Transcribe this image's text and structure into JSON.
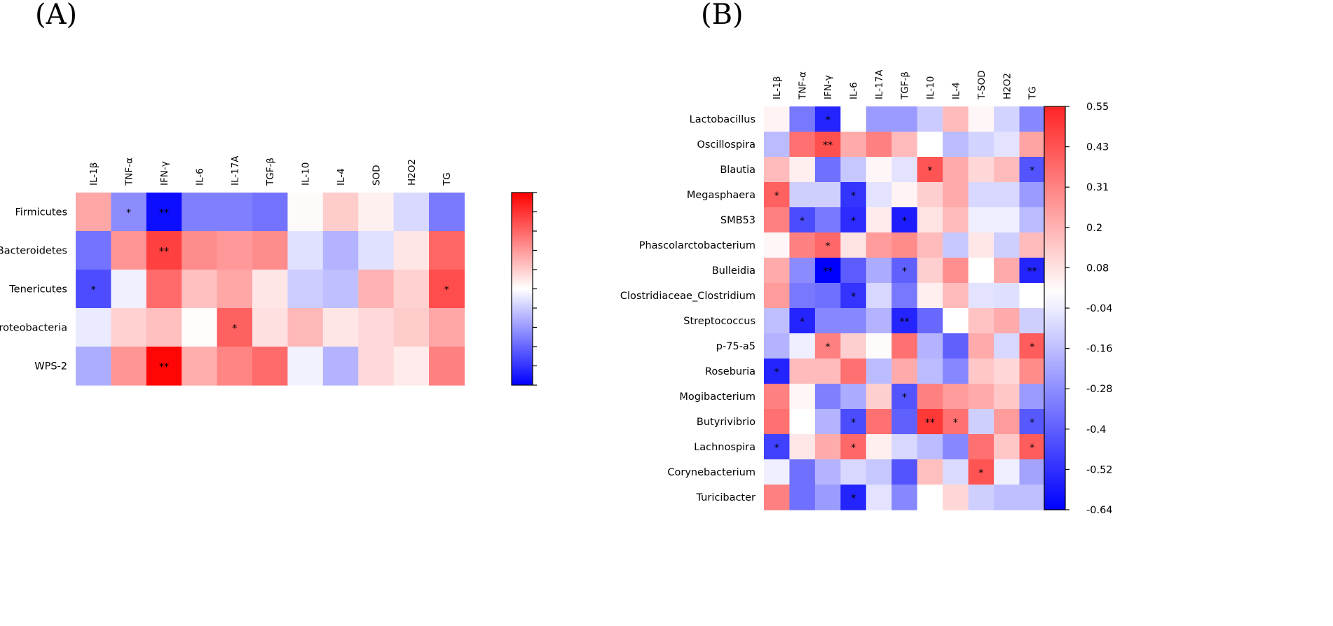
{
  "chart_data": [
    {
      "type": "heatmap",
      "panel_label": "(A)",
      "columns": [
        "IL-1β",
        "TNF-α",
        "IFN-γ",
        "IL-6",
        "IL-17A",
        "TGF-β",
        "IL-10",
        "IL-4",
        "SOD",
        "H2O2",
        "TG"
      ],
      "rows": [
        "Firmicutes",
        "Bacteroidetes",
        "Tenericutes",
        "Proteobacteria",
        "WPS-2"
      ],
      "values": [
        [
          0.35,
          -0.45,
          -0.95,
          -0.5,
          -0.5,
          -0.55,
          0.02,
          0.2,
          0.06,
          -0.15,
          -0.52
        ],
        [
          -0.55,
          0.42,
          0.75,
          0.45,
          0.4,
          0.45,
          -0.12,
          -0.3,
          -0.12,
          0.1,
          0.6
        ],
        [
          -0.7,
          -0.06,
          0.58,
          0.25,
          0.35,
          0.1,
          -0.2,
          -0.25,
          0.3,
          0.18,
          0.7
        ],
        [
          -0.08,
          0.18,
          0.25,
          0.01,
          0.62,
          0.12,
          0.28,
          0.1,
          0.15,
          0.2,
          0.35
        ],
        [
          -0.32,
          0.42,
          0.98,
          0.32,
          0.48,
          0.58,
          -0.05,
          -0.3,
          0.15,
          0.08,
          0.5
        ]
      ],
      "significance": [
        [
          "",
          "*",
          "**",
          "",
          "",
          "",
          "",
          "",
          "",
          "",
          ""
        ],
        [
          "",
          "",
          "**",
          "",
          "",
          "",
          "",
          "",
          "",
          "",
          ""
        ],
        [
          "*",
          "",
          "",
          "",
          "",
          "",
          "",
          "",
          "",
          "",
          "*"
        ],
        [
          "",
          "",
          "",
          "",
          "*",
          "",
          "",
          "",
          "",
          "",
          ""
        ],
        [
          "",
          "",
          "**",
          "",
          "",
          "",
          "",
          "",
          "",
          "",
          ""
        ]
      ],
      "colorbar_ticks": [],
      "vmin": -1,
      "vmax": 1,
      "colormap": {
        "low": "#0000ff",
        "mid": "#ffffff",
        "high": "#ff0000"
      }
    },
    {
      "type": "heatmap",
      "panel_label": "(B)",
      "columns": [
        "IL-1β",
        "TNF-α",
        "IFN-γ",
        "IL-6",
        "IL-17A",
        "TGF-β",
        "IL-10",
        "IL-4",
        "T-SOD",
        "H2O2",
        "TG"
      ],
      "rows": [
        "Lactobacillus",
        "Oscillospira",
        "Blautia",
        "Megasphaera",
        "SMB53",
        "Phascolarctobacterium",
        "Bulleidia",
        "Clostridiaceae_Clostridium",
        "Streptococcus",
        "p-75-a5",
        "Roseburia",
        "Mogibacterium",
        "Butyrivibrio",
        "Lachnospira",
        "Corynebacterium",
        "Turicibacter"
      ],
      "values": [
        [
          0.03,
          -0.34,
          -0.55,
          0.0,
          -0.25,
          -0.25,
          -0.13,
          0.17,
          0.02,
          -0.11,
          -0.3
        ],
        [
          -0.17,
          0.36,
          0.44,
          0.21,
          0.32,
          0.17,
          0.0,
          -0.17,
          -0.11,
          -0.07,
          0.23
        ],
        [
          0.17,
          0.04,
          -0.36,
          -0.14,
          0.02,
          -0.07,
          0.43,
          0.21,
          0.1,
          0.17,
          -0.43
        ],
        [
          0.4,
          -0.12,
          -0.12,
          -0.51,
          -0.07,
          0.03,
          0.12,
          0.21,
          -0.1,
          -0.1,
          -0.25
        ],
        [
          0.32,
          -0.45,
          -0.34,
          -0.53,
          0.05,
          -0.57,
          0.07,
          0.17,
          -0.04,
          -0.04,
          -0.17
        ],
        [
          0.02,
          0.32,
          0.38,
          0.07,
          0.25,
          0.29,
          0.17,
          -0.14,
          0.06,
          -0.12,
          0.17
        ],
        [
          0.21,
          -0.29,
          -0.64,
          -0.41,
          -0.21,
          -0.4,
          0.12,
          0.28,
          0.0,
          0.21,
          -0.55
        ],
        [
          0.25,
          -0.34,
          -0.36,
          -0.51,
          -0.1,
          -0.34,
          0.04,
          0.17,
          -0.07,
          -0.08,
          0.0
        ],
        [
          -0.16,
          -0.55,
          -0.3,
          -0.3,
          -0.19,
          -0.55,
          -0.38,
          0.0,
          0.15,
          0.21,
          -0.12
        ],
        [
          -0.19,
          -0.04,
          0.32,
          0.12,
          0.01,
          0.36,
          -0.19,
          -0.4,
          0.21,
          -0.1,
          0.41
        ],
        [
          -0.55,
          0.17,
          0.17,
          0.36,
          -0.17,
          0.21,
          -0.17,
          -0.3,
          0.14,
          0.1,
          0.29
        ],
        [
          0.32,
          0.02,
          -0.32,
          -0.21,
          0.12,
          -0.43,
          0.32,
          0.25,
          0.21,
          0.14,
          -0.25
        ],
        [
          0.36,
          0.0,
          -0.19,
          -0.45,
          0.36,
          -0.4,
          0.5,
          0.36,
          -0.12,
          0.25,
          -0.42
        ],
        [
          -0.48,
          0.06,
          0.21,
          0.38,
          0.04,
          -0.1,
          -0.17,
          -0.3,
          0.36,
          0.14,
          0.41
        ],
        [
          -0.04,
          -0.36,
          -0.19,
          -0.1,
          -0.14,
          -0.43,
          0.16,
          -0.09,
          0.43,
          -0.04,
          -0.23
        ],
        [
          0.32,
          -0.36,
          -0.25,
          -0.55,
          -0.07,
          -0.3,
          0.0,
          0.1,
          -0.12,
          -0.16,
          -0.16
        ]
      ],
      "significance": [
        [
          "",
          "",
          "*",
          "",
          "",
          "",
          "",
          "",
          "",
          "",
          ""
        ],
        [
          "",
          "",
          "**",
          "",
          "",
          "",
          "",
          "",
          "",
          "",
          ""
        ],
        [
          "",
          "",
          "",
          "",
          "",
          "",
          "*",
          "",
          "",
          "",
          "*"
        ],
        [
          "*",
          "",
          "",
          "*",
          "",
          "",
          "",
          "",
          "",
          "",
          ""
        ],
        [
          "",
          "*",
          "",
          "*",
          "",
          "*",
          "",
          "",
          "",
          "",
          ""
        ],
        [
          "",
          "",
          "*",
          "",
          "",
          "",
          "",
          "",
          "",
          "",
          ""
        ],
        [
          "",
          "",
          "**",
          "",
          "",
          "*",
          "",
          "",
          "",
          "",
          "**"
        ],
        [
          "",
          "",
          "",
          "*",
          "",
          "",
          "",
          "",
          "",
          "",
          ""
        ],
        [
          "",
          "*",
          "",
          "",
          "",
          "**",
          "",
          "",
          "",
          "",
          ""
        ],
        [
          "",
          "",
          "*",
          "",
          "",
          "",
          "",
          "",
          "",
          "",
          "*"
        ],
        [
          "*",
          "",
          "",
          "",
          "",
          "",
          "",
          "",
          "",
          "",
          ""
        ],
        [
          "",
          "",
          "",
          "",
          "",
          "*",
          "",
          "",
          "",
          "",
          ""
        ],
        [
          "",
          "",
          "",
          "*",
          "",
          "",
          "**",
          "*",
          "",
          "",
          "*"
        ],
        [
          "*",
          "",
          "",
          "*",
          "",
          "",
          "",
          "",
          "",
          "",
          "*"
        ],
        [
          "",
          "",
          "",
          "",
          "",
          "",
          "",
          "",
          "*",
          "",
          ""
        ],
        [
          "",
          "",
          "",
          "*",
          "",
          "",
          "",
          "",
          "",
          "",
          ""
        ]
      ],
      "colorbar_ticks": [
        "0.55",
        "0.43",
        "0.31",
        "0.2",
        "0.08",
        "-0.04",
        "-0.16",
        "-0.28",
        "-0.4",
        "-0.52",
        "-0.64"
      ],
      "vmin": -0.64,
      "vmax": 0.55,
      "colormap": {
        "low": "#0000ff",
        "mid": "#ffffff",
        "high": "#ff0000"
      }
    }
  ]
}
